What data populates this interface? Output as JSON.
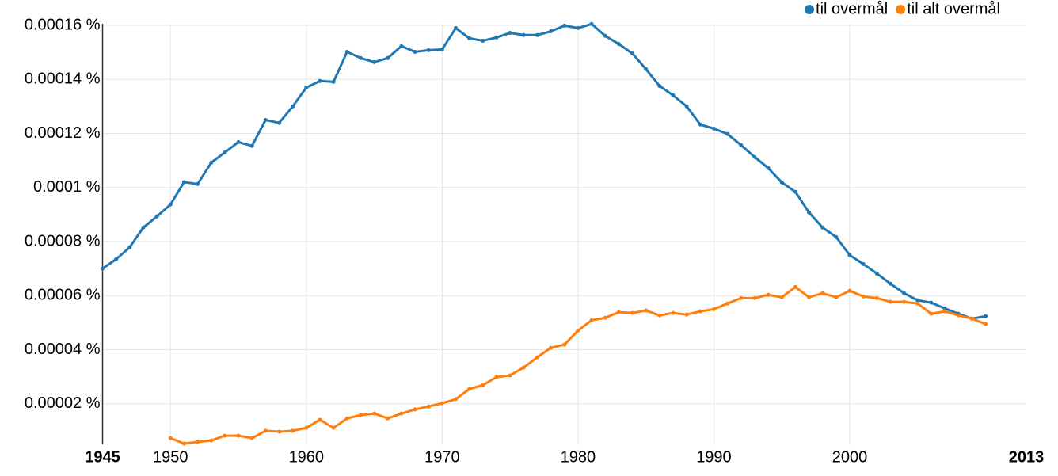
{
  "chart_data": {
    "type": "line",
    "x": [
      1945,
      1946,
      1947,
      1948,
      1949,
      1950,
      1951,
      1952,
      1953,
      1954,
      1955,
      1956,
      1957,
      1958,
      1959,
      1960,
      1961,
      1962,
      1963,
      1964,
      1965,
      1966,
      1967,
      1968,
      1969,
      1970,
      1971,
      1972,
      1973,
      1974,
      1975,
      1976,
      1977,
      1978,
      1979,
      1980,
      1981,
      1982,
      1983,
      1984,
      1985,
      1986,
      1987,
      1988,
      1989,
      1990,
      1991,
      1992,
      1993,
      1994,
      1995,
      1996,
      1997,
      1998,
      1999,
      2000,
      2001,
      2002,
      2003,
      2004,
      2005,
      2006,
      2007,
      2008,
      2009,
      2010
    ],
    "series": [
      {
        "name": "til overmål",
        "color": "#1f77b4",
        "values": [
          7e-05,
          7.35e-05,
          7.79e-05,
          8.52e-05,
          8.93e-05,
          9.37e-05,
          0.000102,
          0.0001013,
          0.0001092,
          0.000113,
          0.0001168,
          0.0001154,
          0.000125,
          0.0001239,
          0.00013,
          0.000137,
          0.0001394,
          0.0001391,
          0.0001502,
          0.0001479,
          0.0001464,
          0.0001479,
          0.0001523,
          0.0001502,
          0.0001508,
          0.0001511,
          0.000159,
          0.0001552,
          0.0001543,
          0.0001555,
          0.0001572,
          0.0001564,
          0.0001564,
          0.0001578,
          0.0001599,
          0.000159,
          0.0001605,
          0.0001561,
          0.0001531,
          0.0001496,
          0.0001438,
          0.0001376,
          0.0001341,
          0.00013,
          0.0001233,
          0.0001218,
          0.0001198,
          0.0001157,
          0.0001113,
          0.0001072,
          0.0001019,
          9.84e-05,
          9.08e-05,
          8.52e-05,
          8.17e-05,
          7.5e-05,
          7.17e-05,
          6.82e-05,
          6.44e-05,
          6.09e-05,
          5.83e-05,
          5.74e-05,
          5.53e-05,
          5.33e-05,
          5.15e-05,
          5.24e-05
        ]
      },
      {
        "name": "til alt overmål",
        "color": "#ff7f0e",
        "values": [
          null,
          null,
          null,
          null,
          null,
          7.3e-06,
          5.3e-06,
          5.9e-06,
          6.4e-06,
          8.2e-06,
          8.2e-06,
          7.3e-06,
          1e-05,
          9.7e-06,
          1e-05,
          1.11e-05,
          1.41e-05,
          1.11e-05,
          1.46e-05,
          1.58e-05,
          1.64e-05,
          1.46e-05,
          1.64e-05,
          1.79e-05,
          1.9e-05,
          2.02e-05,
          2.17e-05,
          2.55e-05,
          2.69e-05,
          2.99e-05,
          3.05e-05,
          3.34e-05,
          3.72e-05,
          4.07e-05,
          4.19e-05,
          4.71e-05,
          5.09e-05,
          5.18e-05,
          5.39e-05,
          5.36e-05,
          5.45e-05,
          5.27e-05,
          5.36e-05,
          5.3e-05,
          5.42e-05,
          5.5e-05,
          5.71e-05,
          5.91e-05,
          5.91e-05,
          6.03e-05,
          5.94e-05,
          6.32e-05,
          5.94e-05,
          6.09e-05,
          5.94e-05,
          6.18e-05,
          5.97e-05,
          5.91e-05,
          5.77e-05,
          5.77e-05,
          5.71e-05,
          5.33e-05,
          5.42e-05,
          5.27e-05,
          5.15e-05,
          4.95e-05
        ]
      }
    ],
    "xlim": [
      1945,
      2013
    ],
    "xticks": [
      1945,
      1950,
      1960,
      1970,
      1980,
      1990,
      2000,
      2013
    ],
    "ylim": [
      5e-06,
      0.00016
    ],
    "yticks": [
      {
        "value": 2e-05,
        "label": "0.00002 %"
      },
      {
        "value": 4e-05,
        "label": "0.00004 %"
      },
      {
        "value": 6e-05,
        "label": "0.00006 %"
      },
      {
        "value": 8e-05,
        "label": "0.00008 %"
      },
      {
        "value": 0.0001,
        "label": "0.0001 %"
      },
      {
        "value": 0.00012,
        "label": "0.00012 %"
      },
      {
        "value": 0.00014,
        "label": "0.00014 %"
      },
      {
        "value": 0.00016,
        "label": "0.00016 %"
      }
    ],
    "grid": true,
    "legend": "top-right"
  }
}
